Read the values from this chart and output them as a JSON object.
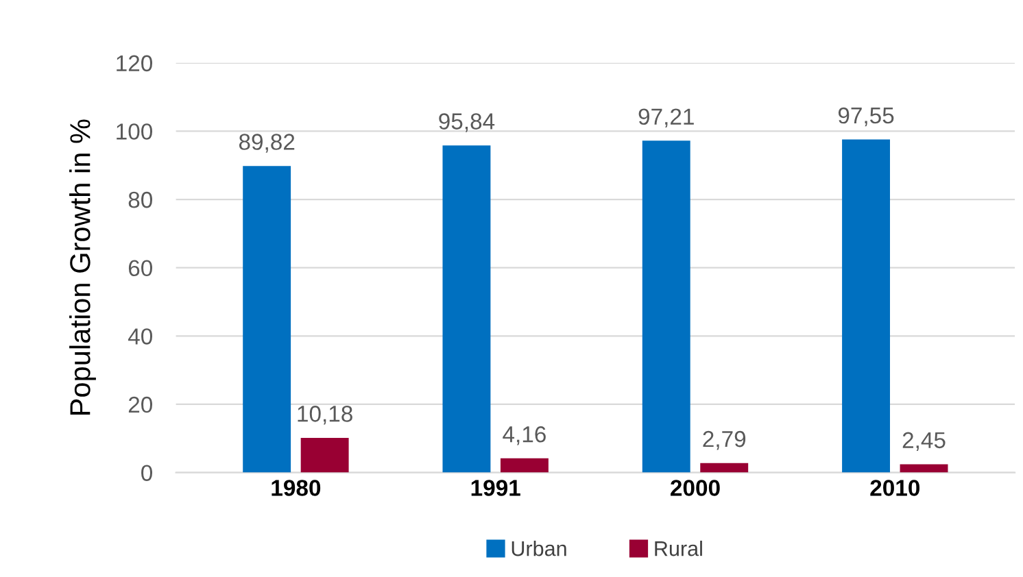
{
  "chart_data": {
    "type": "bar",
    "ylabel": "Population Growth in %",
    "categories": [
      "1980",
      "1991",
      "2000",
      "2010"
    ],
    "series": [
      {
        "name": "Urban",
        "color": "#0070c0",
        "values": [
          89.82,
          95.84,
          97.21,
          97.55
        ],
        "value_labels": [
          "89,82",
          "95,84",
          "97,21",
          "97,55"
        ]
      },
      {
        "name": "Rural",
        "color": "#990033",
        "values": [
          10.18,
          4.16,
          2.79,
          2.45
        ],
        "value_labels": [
          "10,18",
          "4,16",
          "2,79",
          "2,45"
        ]
      }
    ],
    "ylim": [
      0,
      120
    ],
    "yticks": [
      0,
      20,
      40,
      60,
      80,
      100,
      120
    ],
    "grid": "y",
    "legend": "bottom"
  }
}
